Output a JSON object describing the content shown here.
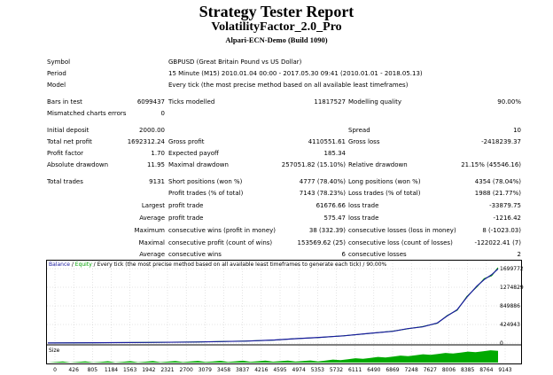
{
  "header": {
    "title": "Strategy Tester Report",
    "subtitle": "VolatilityFactor_2.0_Pro",
    "server": "Alpari-ECN-Demo (Build 1090)"
  },
  "info": {
    "symbol_label": "Symbol",
    "symbol_value": "GBPUSD (Great Britain Pound vs US Dollar)",
    "period_label": "Period",
    "period_value": "15 Minute (M15) 2010.01.04 00:00 - 2017.05.30 09:41 (2010.01.01 - 2018.05.13)",
    "model_label": "Model",
    "model_value": "Every tick (the most precise method based on all available least timeframes)"
  },
  "stats": {
    "bars_label": "Bars in test",
    "bars_value": "6099437",
    "ticks_label": "Ticks modelled",
    "ticks_value": "11817527",
    "quality_label": "Modelling quality",
    "quality_value": "90.00%",
    "mismatch_label": "Mismatched charts errors",
    "mismatch_value": "0",
    "deposit_label": "Initial deposit",
    "deposit_value": "2000.00",
    "spread_label": "Spread",
    "spread_value": "10",
    "netprofit_label": "Total net profit",
    "netprofit_value": "1692312.24",
    "grossprofit_label": "Gross profit",
    "grossprofit_value": "4110551.61",
    "grossloss_label": "Gross loss",
    "grossloss_value": "-2418239.37",
    "pf_label": "Profit factor",
    "pf_value": "1.70",
    "payoff_label": "Expected payoff",
    "payoff_value": "185.34",
    "absdd_label": "Absolute drawdown",
    "absdd_value": "11.95",
    "maxdd_label": "Maximal drawdown",
    "maxdd_value": "257051.82 (15.10%)",
    "reldd_label": "Relative drawdown",
    "reldd_value": "21.15% (45546.16)",
    "trades_label": "Total trades",
    "trades_value": "9131",
    "short_label": "Short positions (won %)",
    "short_value": "4777 (78.40%)",
    "long_label": "Long positions (won %)",
    "long_value": "4354 (78.04%)",
    "ptrades_label": "Profit trades (% of total)",
    "ptrades_value": "7143 (78.23%)",
    "ltrades_label": "Loss trades (% of total)",
    "ltrades_value": "1988 (21.77%)",
    "largest_label": "Largest",
    "largest_profit_label": "profit trade",
    "largest_profit_value": "61676.66",
    "largest_loss_label": "loss trade",
    "largest_loss_value": "-33879.75",
    "average_label": "Average",
    "average_profit_label": "profit trade",
    "average_profit_value": "575.47",
    "average_loss_label": "loss trade",
    "average_loss_value": "-1216.42",
    "maximum_label": "Maximum",
    "max_wins_label": "consecutive wins (profit in money)",
    "max_wins_value": "38 (332.39)",
    "max_losses_label": "consecutive losses (loss in money)",
    "max_losses_value": "8 (-1023.03)",
    "maximal_label": "Maximal",
    "maximal_profit_label": "consecutive profit (count of wins)",
    "maximal_profit_value": "153569.62 (25)",
    "maximal_loss_label": "consecutive loss (count of losses)",
    "maximal_loss_value": "-122022.41 (7)",
    "avg2_label": "Average",
    "avg_wins_label": "consecutive wins",
    "avg_wins_value": "6",
    "avg_losses_label": "consecutive losses",
    "avg_losses_value": "2"
  },
  "chart_data": {
    "type": "line",
    "legend": {
      "balance": "Balance",
      "slash": " / ",
      "equity": "Equity",
      "text": " / Every tick (the most precise method based on all available least timeframes to generate each tick) / 90.00%"
    },
    "size_label": "Size",
    "x_ticks": [
      "0",
      "426",
      "805",
      "1184",
      "1563",
      "1942",
      "2321",
      "2700",
      "3079",
      "3458",
      "3837",
      "4216",
      "4595",
      "4974",
      "5353",
      "5732",
      "6111",
      "6490",
      "6869",
      "7248",
      "7627",
      "8006",
      "8385",
      "8764",
      "9143"
    ],
    "y_ticks": [
      "1699772",
      "1274829",
      "849886",
      "424943",
      "0"
    ],
    "ylim": [
      0,
      1699772
    ],
    "xlim": [
      0,
      9131
    ],
    "balance_x": [
      0,
      1000,
      2000,
      3000,
      4000,
      4600,
      5000,
      5500,
      6000,
      6500,
      7000,
      7300,
      7600,
      7900,
      8100,
      8300,
      8500,
      8700,
      8850,
      9000,
      9131
    ],
    "balance_y": [
      2000,
      8000,
      15000,
      25000,
      45000,
      70000,
      100000,
      130000,
      165000,
      220000,
      270000,
      330000,
      370000,
      460000,
      620000,
      760000,
      1050000,
      1300000,
      1450000,
      1560000,
      1694312
    ],
    "colors": {
      "balance": "#1a1aa0",
      "equity": "#00a000",
      "grid": "#c8c8c8",
      "size_fill": "#00aa00"
    }
  }
}
